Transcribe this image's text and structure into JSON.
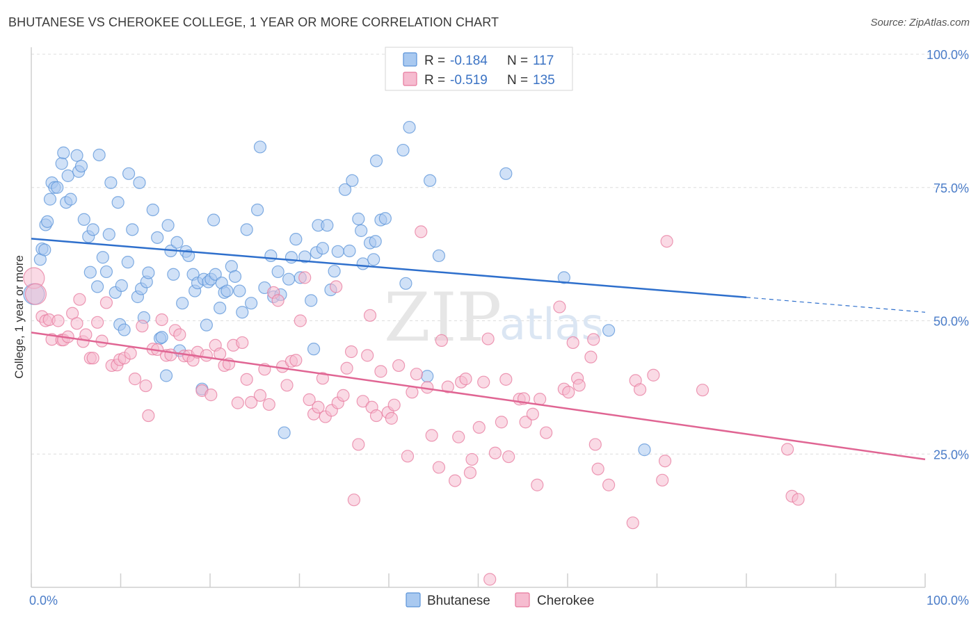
{
  "title": "BHUTANESE VS CHEROKEE COLLEGE, 1 YEAR OR MORE CORRELATION CHART",
  "source": "Source: ZipAtlas.com",
  "watermark": {
    "zip": "ZIP",
    "atlas": "atlas"
  },
  "colors": {
    "bhutanese_fill": "#a9c9f0",
    "bhutanese_stroke": "#5a93d8",
    "bhutanese_line": "#2e6fcc",
    "cherokee_fill": "#f6bcd0",
    "cherokee_stroke": "#e7799d",
    "cherokee_line": "#e06593",
    "axis_label": "#4a7cc8",
    "grid": "#dddddd"
  },
  "legend": {
    "r_label": "R =",
    "n_label": "N =",
    "entries": [
      {
        "series": "Bhutanese",
        "r": "-0.184",
        "n": "117"
      },
      {
        "series": "Cherokee",
        "r": "-0.519",
        "n": "135"
      }
    ]
  },
  "chart_data": {
    "type": "scatter",
    "title": "BHUTANESE VS CHEROKEE COLLEGE, 1 YEAR OR MORE CORRELATION CHART",
    "xlabel": "",
    "ylabel": "College, 1 year or more",
    "xlim": [
      0,
      100
    ],
    "ylim": [
      0,
      100
    ],
    "x_tick_labels": [
      "0.0%",
      "100.0%"
    ],
    "y_ticks": [
      25,
      50,
      75,
      100
    ],
    "y_tick_labels": [
      "25.0%",
      "50.0%",
      "75.0%",
      "100.0%"
    ],
    "grid": true,
    "legend_position": "top-center",
    "series": [
      {
        "name": "Bhutanese",
        "trend": {
          "x": [
            0,
            80
          ],
          "y": [
            65.4,
            54.4
          ],
          "dashed_to": [
            100,
            51.6
          ]
        },
        "points": [
          [
            0.3,
            55
          ],
          [
            1.0,
            61.5
          ],
          [
            1.2,
            63.5
          ],
          [
            1.5,
            63.3
          ],
          [
            1.6,
            68
          ],
          [
            1.8,
            68.6
          ],
          [
            2.1,
            72.8
          ],
          [
            2.3,
            75.9
          ],
          [
            2.6,
            75
          ],
          [
            2.9,
            75
          ],
          [
            3.4,
            79.5
          ],
          [
            3.6,
            81.5
          ],
          [
            3.9,
            72.2
          ],
          [
            4.1,
            77.2
          ],
          [
            4.4,
            72.8
          ],
          [
            5.1,
            81
          ],
          [
            5.3,
            78
          ],
          [
            5.6,
            79
          ],
          [
            5.9,
            69
          ],
          [
            6.4,
            65.8
          ],
          [
            6.6,
            59.1
          ],
          [
            6.9,
            67.1
          ],
          [
            7.4,
            56.4
          ],
          [
            7.6,
            81.1
          ],
          [
            8.0,
            61.9
          ],
          [
            8.4,
            59.2
          ],
          [
            8.7,
            66.2
          ],
          [
            8.9,
            75.9
          ],
          [
            9.4,
            55.3
          ],
          [
            9.7,
            72.2
          ],
          [
            9.9,
            49.3
          ],
          [
            10.1,
            56.6
          ],
          [
            10.4,
            48.3
          ],
          [
            10.8,
            61
          ],
          [
            10.9,
            77.6
          ],
          [
            11.3,
            67.1
          ],
          [
            11.9,
            54.5
          ],
          [
            12.1,
            75.9
          ],
          [
            12.3,
            56
          ],
          [
            12.6,
            50.6
          ],
          [
            12.9,
            57.3
          ],
          [
            13.1,
            59
          ],
          [
            13.6,
            70.8
          ],
          [
            14.1,
            65.6
          ],
          [
            14.4,
            46.7
          ],
          [
            14.6,
            46.9
          ],
          [
            15.1,
            39.7
          ],
          [
            15.3,
            67.9
          ],
          [
            15.6,
            63.1
          ],
          [
            15.9,
            58.7
          ],
          [
            16.3,
            64.7
          ],
          [
            16.6,
            44.4
          ],
          [
            16.9,
            53.3
          ],
          [
            17.3,
            63
          ],
          [
            17.6,
            62.2
          ],
          [
            18.1,
            58.7
          ],
          [
            18.3,
            55.6
          ],
          [
            18.6,
            57.1
          ],
          [
            19.1,
            37.2
          ],
          [
            19.3,
            57.8
          ],
          [
            19.6,
            49.2
          ],
          [
            19.8,
            57.3
          ],
          [
            20.1,
            57.8
          ],
          [
            20.4,
            68.9
          ],
          [
            20.6,
            58.7
          ],
          [
            21.1,
            52.4
          ],
          [
            21.3,
            57.1
          ],
          [
            21.6,
            55.3
          ],
          [
            21.9,
            55.6
          ],
          [
            22.4,
            60.2
          ],
          [
            22.8,
            58.3
          ],
          [
            23.3,
            55.6
          ],
          [
            23.6,
            51.6
          ],
          [
            24.1,
            67.1
          ],
          [
            24.6,
            53.3
          ],
          [
            25.3,
            70.8
          ],
          [
            25.6,
            82.6
          ],
          [
            26.1,
            56.2
          ],
          [
            26.8,
            62.2
          ],
          [
            27.1,
            54.5
          ],
          [
            27.6,
            59.2
          ],
          [
            27.9,
            54.9
          ],
          [
            28.3,
            29
          ],
          [
            28.8,
            57.8
          ],
          [
            29.1,
            61.9
          ],
          [
            29.6,
            65.3
          ],
          [
            30.1,
            58.1
          ],
          [
            30.6,
            62
          ],
          [
            31.3,
            53.8
          ],
          [
            31.6,
            44.7
          ],
          [
            31.9,
            62.8
          ],
          [
            32.1,
            67.9
          ],
          [
            32.6,
            63.6
          ],
          [
            33.1,
            67.9
          ],
          [
            33.5,
            55.8
          ],
          [
            33.9,
            59.3
          ],
          [
            34.3,
            63
          ],
          [
            35.1,
            74.6
          ],
          [
            35.6,
            63.1
          ],
          [
            35.9,
            76.3
          ],
          [
            36.6,
            69.1
          ],
          [
            36.9,
            66.9
          ],
          [
            37.1,
            60.7
          ],
          [
            37.9,
            64.6
          ],
          [
            38.3,
            61.5
          ],
          [
            38.5,
            64.9
          ],
          [
            38.6,
            80
          ],
          [
            39.1,
            68.9
          ],
          [
            39.6,
            69.2
          ],
          [
            41.6,
            82
          ],
          [
            41.9,
            57
          ],
          [
            42.3,
            86.3
          ],
          [
            44.3,
            39.6
          ],
          [
            44.6,
            76.3
          ],
          [
            45.6,
            62.2
          ],
          [
            53.1,
            77.6
          ],
          [
            59.6,
            58.1
          ],
          [
            64.6,
            48.2
          ],
          [
            68.6,
            25.8
          ]
        ]
      },
      {
        "name": "Cherokee",
        "trend": {
          "x": [
            0,
            100
          ],
          "y": [
            47.8,
            24.0
          ]
        },
        "points": [
          [
            0.3,
            58
          ],
          [
            0.5,
            55
          ],
          [
            1.2,
            50.8
          ],
          [
            1.6,
            50
          ],
          [
            2.0,
            50.2
          ],
          [
            2.3,
            46.5
          ],
          [
            3.0,
            50
          ],
          [
            3.4,
            46.4
          ],
          [
            3.6,
            46.4
          ],
          [
            4.1,
            47
          ],
          [
            4.6,
            51.4
          ],
          [
            5.1,
            49.5
          ],
          [
            5.4,
            54
          ],
          [
            5.8,
            46.1
          ],
          [
            6.1,
            47.4
          ],
          [
            6.6,
            43
          ],
          [
            6.9,
            43
          ],
          [
            7.4,
            49.7
          ],
          [
            7.9,
            46.2
          ],
          [
            8.4,
            53.4
          ],
          [
            9.0,
            41.6
          ],
          [
            9.6,
            41.7
          ],
          [
            9.9,
            42.7
          ],
          [
            10.4,
            43
          ],
          [
            11.1,
            43.9
          ],
          [
            11.6,
            39.1
          ],
          [
            12.4,
            49
          ],
          [
            12.8,
            37.8
          ],
          [
            13.1,
            32.2
          ],
          [
            13.6,
            44.7
          ],
          [
            14.1,
            44.6
          ],
          [
            14.6,
            50.2
          ],
          [
            15.1,
            43.5
          ],
          [
            15.6,
            43.6
          ],
          [
            16.1,
            48.2
          ],
          [
            16.6,
            47.4
          ],
          [
            17.1,
            43.4
          ],
          [
            17.6,
            43.4
          ],
          [
            18.1,
            42.6
          ],
          [
            18.6,
            44.1
          ],
          [
            19.1,
            36.9
          ],
          [
            19.6,
            43.5
          ],
          [
            20.1,
            36.1
          ],
          [
            20.6,
            45.4
          ],
          [
            21.1,
            43.8
          ],
          [
            21.6,
            41.6
          ],
          [
            22.1,
            41.9
          ],
          [
            22.6,
            45.4
          ],
          [
            23.1,
            34.6
          ],
          [
            23.6,
            45.9
          ],
          [
            24.1,
            39
          ],
          [
            24.6,
            34.7
          ],
          [
            25.6,
            36
          ],
          [
            26.1,
            40.9
          ],
          [
            26.6,
            34.3
          ],
          [
            27.1,
            55.3
          ],
          [
            27.6,
            53.8
          ],
          [
            28.1,
            41.4
          ],
          [
            28.6,
            37.9
          ],
          [
            29.1,
            42.4
          ],
          [
            29.6,
            42.6
          ],
          [
            30.1,
            50
          ],
          [
            30.6,
            58.1
          ],
          [
            31.1,
            35.2
          ],
          [
            31.6,
            32.5
          ],
          [
            32.1,
            33.8
          ],
          [
            32.6,
            39.2
          ],
          [
            32.9,
            32
          ],
          [
            33.6,
            33.2
          ],
          [
            34.1,
            56.4
          ],
          [
            34.3,
            34.6
          ],
          [
            34.9,
            36
          ],
          [
            35.3,
            41.1
          ],
          [
            35.8,
            44.2
          ],
          [
            36.1,
            16.4
          ],
          [
            36.6,
            26.8
          ],
          [
            37.1,
            34.9
          ],
          [
            37.6,
            43.5
          ],
          [
            37.9,
            51
          ],
          [
            38.1,
            33.8
          ],
          [
            38.6,
            32.2
          ],
          [
            39.1,
            40.5
          ],
          [
            39.9,
            32.8
          ],
          [
            40.3,
            31.7
          ],
          [
            40.6,
            34.2
          ],
          [
            41.1,
            41.6
          ],
          [
            42.1,
            24.6
          ],
          [
            42.6,
            36.6
          ],
          [
            43.1,
            40
          ],
          [
            43.6,
            66.7
          ],
          [
            44.3,
            37.5
          ],
          [
            44.8,
            28.5
          ],
          [
            45.6,
            22.5
          ],
          [
            45.9,
            46.3
          ],
          [
            46.6,
            37.6
          ],
          [
            47.4,
            20
          ],
          [
            47.8,
            28.2
          ],
          [
            48.1,
            38.5
          ],
          [
            48.6,
            39.1
          ],
          [
            49.1,
            21.5
          ],
          [
            49.3,
            24
          ],
          [
            50.1,
            30
          ],
          [
            50.6,
            38.5
          ],
          [
            51.1,
            46.6
          ],
          [
            51.3,
            1.5
          ],
          [
            51.9,
            25.2
          ],
          [
            52.6,
            31
          ],
          [
            53.1,
            39
          ],
          [
            53.4,
            24.5
          ],
          [
            54.6,
            35.3
          ],
          [
            55.1,
            35.4
          ],
          [
            55.3,
            31
          ],
          [
            56.1,
            32.5
          ],
          [
            56.6,
            19.2
          ],
          [
            56.9,
            35.3
          ],
          [
            57.6,
            29
          ],
          [
            59.1,
            52.6
          ],
          [
            59.6,
            37.2
          ],
          [
            60.1,
            36.6
          ],
          [
            60.6,
            45.9
          ],
          [
            61.1,
            39.2
          ],
          [
            61.3,
            37.9
          ],
          [
            62.6,
            43.2
          ],
          [
            62.9,
            46.5
          ],
          [
            63.1,
            26.8
          ],
          [
            63.4,
            22.2
          ],
          [
            64.6,
            19.2
          ],
          [
            67.3,
            12.1
          ],
          [
            67.6,
            38.8
          ],
          [
            68.1,
            37.1
          ],
          [
            69.6,
            39.8
          ],
          [
            70.6,
            20.1
          ],
          [
            70.9,
            23.7
          ],
          [
            71.1,
            64.9
          ],
          [
            75.1,
            37
          ],
          [
            84.6,
            25.9
          ],
          [
            85.1,
            17.1
          ],
          [
            85.8,
            16.5
          ]
        ]
      }
    ]
  }
}
